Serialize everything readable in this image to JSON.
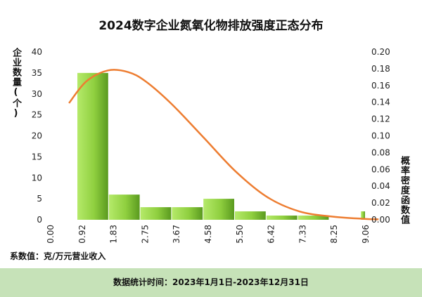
{
  "chart_data": {
    "type": "bar",
    "title": "2024数字企业氮氧化物排放强度正态分布",
    "ylabel": "企业数量(个)",
    "y2label": "概率密度函数值",
    "x_ticks": [
      "0.00",
      "0.92",
      "1.83",
      "2.75",
      "3.67",
      "4.58",
      "5.50",
      "6.42",
      "7.33",
      "8.25",
      "9.06"
    ],
    "categories": [
      "0.00-0.92",
      "0.92-1.83",
      "1.83-2.75",
      "2.75-3.67",
      "3.67-4.58",
      "4.58-5.50",
      "5.50-6.42",
      "6.42-7.33",
      "8.25-9.06"
    ],
    "values": [
      35,
      6,
      3,
      3,
      5,
      2,
      1,
      1,
      2
    ],
    "bar_bins": [
      [
        0.0,
        0.92
      ],
      [
        0.92,
        1.83
      ],
      [
        1.83,
        2.75
      ],
      [
        2.75,
        3.67
      ],
      [
        3.67,
        4.58
      ],
      [
        4.58,
        5.5
      ],
      [
        5.5,
        6.42
      ],
      [
        6.42,
        7.33
      ],
      [
        8.25,
        9.06
      ]
    ],
    "ylim": [
      0,
      40
    ],
    "y_ticks": [
      0,
      5,
      10,
      15,
      20,
      25,
      30,
      35,
      40
    ],
    "y2lim": [
      0,
      0.2
    ],
    "y2_ticks": [
      "0.00",
      "0.02",
      "0.04",
      "0.06",
      "0.08",
      "0.10",
      "0.12",
      "0.14",
      "0.16",
      "0.18",
      "0.20"
    ],
    "curve": {
      "x": [
        -0.2,
        0.3,
        0.92,
        1.5,
        2.0,
        2.75,
        3.67,
        4.58,
        5.5,
        6.42,
        7.33,
        8.25,
        8.7
      ],
      "y": [
        0.139,
        0.165,
        0.178,
        0.176,
        0.165,
        0.138,
        0.098,
        0.058,
        0.027,
        0.01,
        0.004,
        0.0012,
        0.0005
      ]
    },
    "colors": {
      "bar_light": "#a8e063",
      "bar_dark": "#5a9a1f",
      "curve": "#ed7d31"
    },
    "grid": false,
    "legend": "none"
  },
  "unit_note": "系数值：克/万元营业收入",
  "footer_text": "数据统计时间：2023年1月1日-2023年12月31日"
}
